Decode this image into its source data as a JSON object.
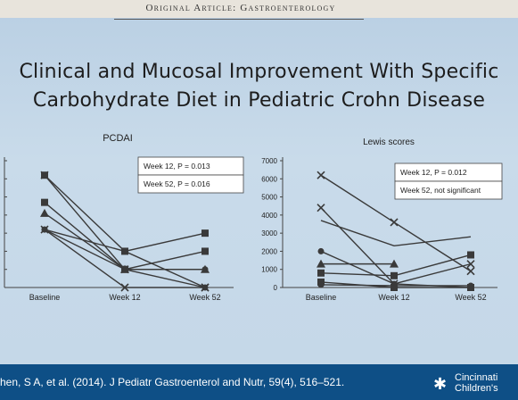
{
  "journal_header": "Original Article: Gastroenterology",
  "title_line1": "Clinical and Mucosal Improvement With Specific",
  "title_line2": "Carbohydrate Diet in Pediatric Crohn Disease",
  "citation": "hen, S A, et al. (2014). J Pediatr Gastroenterol and Nutr, 59(4), 516–521.",
  "logo": {
    "line1": "Cincinnati",
    "line2": "Children's",
    "icon": "runner-icon"
  },
  "colors": {
    "footer": "#0e4f86",
    "series": "#3a3a3a"
  },
  "chart_data": [
    {
      "type": "line",
      "title": "PCDAI",
      "categories": [
        "Baseline",
        "Week 12",
        "Week 52"
      ],
      "ylim": [
        0,
        70
      ],
      "y_tick_labels_visible": false,
      "legend": {
        "placement": "top-right",
        "entries": [
          "Week 12, P = 0.013",
          "Week 52, P = 0.016"
        ]
      },
      "series": [
        {
          "marker": "square",
          "values": [
            62,
            20,
            30
          ]
        },
        {
          "marker": "square",
          "values": [
            47,
            10,
            20
          ]
        },
        {
          "marker": "triangle",
          "values": [
            41,
            10,
            10
          ]
        },
        {
          "marker": "circle",
          "values": [
            32,
            20,
            0
          ]
        },
        {
          "marker": "circle",
          "values": [
            32,
            10,
            10
          ]
        },
        {
          "marker": "x",
          "values": [
            32,
            0,
            0
          ]
        },
        {
          "marker": "x",
          "values": [
            62,
            10,
            0
          ]
        }
      ]
    },
    {
      "type": "line",
      "title": "Lewis scores",
      "categories": [
        "Baseline",
        "Week 12",
        "Week 52"
      ],
      "ylim": [
        0,
        7000
      ],
      "yticks": [
        0,
        1000,
        2000,
        3000,
        4000,
        5000,
        6000,
        7000
      ],
      "legend": {
        "placement": "top-right",
        "entries": [
          "Week 12, P = 0.012",
          "Week 52, not significant"
        ]
      },
      "series": [
        {
          "marker": "x",
          "values": [
            6200,
            3600,
            900
          ]
        },
        {
          "marker": "x",
          "values": [
            4400,
            200,
            1300
          ]
        },
        {
          "marker": "none",
          "values": [
            3700,
            2300,
            2800
          ]
        },
        {
          "marker": "circle",
          "values": [
            2000,
            200,
            0
          ]
        },
        {
          "marker": "triangle",
          "values": [
            1300,
            1300,
            null
          ]
        },
        {
          "marker": "square",
          "values": [
            800,
            650,
            1800
          ]
        },
        {
          "marker": "square",
          "values": [
            300,
            0,
            0
          ]
        },
        {
          "marker": "circle",
          "values": [
            150,
            100,
            100
          ]
        }
      ]
    }
  ]
}
